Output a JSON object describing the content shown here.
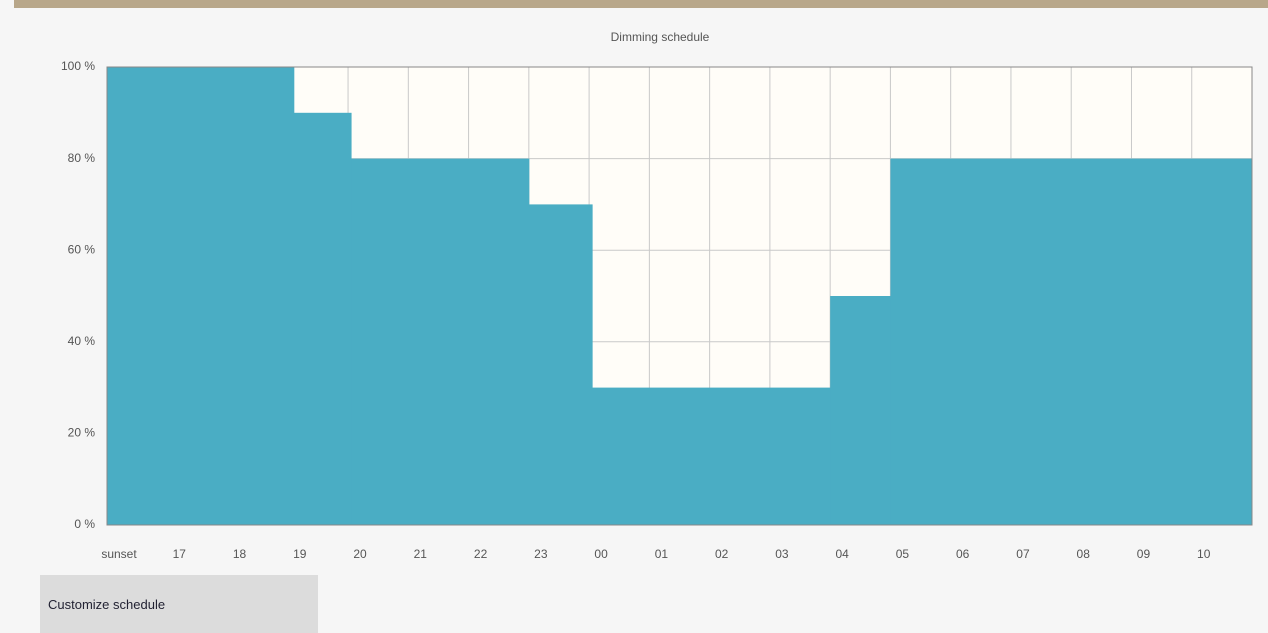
{
  "chart_data": {
    "type": "step-area",
    "title": "Dimming schedule",
    "x": [
      16,
      19.1,
      20.05,
      23,
      24.05,
      28,
      29
    ],
    "values": [
      100,
      90,
      80,
      70,
      30,
      50,
      80
    ],
    "color": "#4aadc4",
    "step": "post",
    "xlim": [
      16,
      35
    ],
    "xticks": [
      {
        "value": 16,
        "label": "sunset"
      },
      17,
      18,
      19,
      20,
      21,
      22,
      23,
      {
        "value": 24,
        "label": "00"
      },
      {
        "value": 25,
        "label": "01"
      },
      {
        "value": 26,
        "label": "02"
      },
      {
        "value": 27,
        "label": "03"
      },
      {
        "value": 28,
        "label": "04"
      },
      {
        "value": 29,
        "label": "05"
      },
      {
        "value": 30,
        "label": "06"
      },
      {
        "value": 31,
        "label": "07"
      },
      {
        "value": 32,
        "label": "08"
      },
      {
        "value": 33,
        "label": "09"
      },
      {
        "value": 34,
        "label": "10"
      }
    ],
    "ylim": [
      0,
      100
    ],
    "yticks": [
      {
        "value": 0,
        "label": "0 %"
      },
      {
        "value": 20,
        "label": "20 %"
      },
      {
        "value": 40,
        "label": "40 %"
      },
      {
        "value": 60,
        "label": "60 %"
      },
      {
        "value": 80,
        "label": "80 %"
      },
      {
        "value": 100,
        "label": "100 %"
      }
    ],
    "grid": true
  },
  "button": "Customize schedule"
}
